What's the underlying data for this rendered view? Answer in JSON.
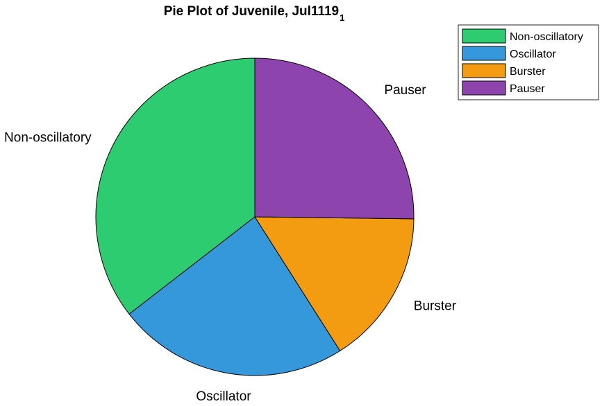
{
  "chart_data": {
    "type": "pie",
    "title": "Pie Plot of Juvenile, Jul1119",
    "title_subscript": "1",
    "categories": [
      "Non-oscillatory",
      "Oscillator",
      "Burster",
      "Pauser"
    ],
    "values": [
      35.5,
      23.5,
      15.8,
      25.2
    ],
    "colors": [
      "#2ecc71",
      "#3498db",
      "#f39c12",
      "#8e44ad"
    ],
    "slice_labels": [
      "Non-oscillatory",
      "Oscillator",
      "Burster",
      "Pauser"
    ],
    "legend": {
      "position": "top-right",
      "entries": [
        "Non-oscillatory",
        "Oscillator",
        "Burster",
        "Pauser"
      ]
    },
    "order": "counterclockwise from top"
  }
}
